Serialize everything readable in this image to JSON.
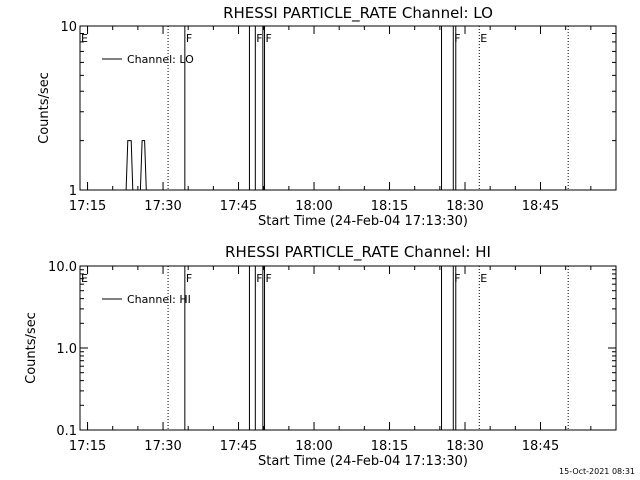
{
  "chart_data": [
    {
      "type": "line",
      "title": "RHESSI PARTICLE_RATE Channel: LO",
      "xlabel": "Start Time (24-Feb-04 17:13:30)",
      "ylabel": "Counts/sec",
      "yscale": "log",
      "ylim": [
        1,
        10
      ],
      "xlim": [
        "17:13:30",
        "19:00:00"
      ],
      "x_ticks": [
        "17:15",
        "17:30",
        "17:45",
        "18:00",
        "18:15",
        "18:30",
        "18:45"
      ],
      "y_ticks": [
        "1",
        "10"
      ],
      "legend": {
        "label": "Channel: LO",
        "placement": "top-left"
      },
      "series": [
        {
          "name": "Channel: LO",
          "points": [
            [
              "17:22:40",
              1
            ],
            [
              "17:23:00",
              2
            ],
            [
              "17:23:40",
              2
            ],
            [
              "17:24:00",
              1
            ],
            [
              "17:25:30",
              1
            ],
            [
              "17:25:50",
              2
            ],
            [
              "17:26:20",
              2
            ],
            [
              "17:26:40",
              1
            ]
          ]
        }
      ],
      "markers": [
        {
          "time": "17:13:30",
          "label": "E",
          "style": "dotted"
        },
        {
          "time": "17:31:00",
          "label": "",
          "style": "dotted"
        },
        {
          "time": "17:34:20",
          "label": "F",
          "style": "solid"
        },
        {
          "time": "17:47:10",
          "label": "",
          "style": "solid"
        },
        {
          "time": "17:48:20",
          "label": "F",
          "style": "solid"
        },
        {
          "time": "17:49:50",
          "label": "",
          "style": "solid"
        },
        {
          "time": "17:50:10",
          "label": "F",
          "style": "solid"
        },
        {
          "time": "18:25:20",
          "label": "",
          "style": "solid"
        },
        {
          "time": "18:27:40",
          "label": "F",
          "style": "solid"
        },
        {
          "time": "18:28:10",
          "label": "",
          "style": "solid"
        },
        {
          "time": "18:32:50",
          "label": "E",
          "style": "dotted"
        },
        {
          "time": "18:50:30",
          "label": "",
          "style": "dotted"
        }
      ]
    },
    {
      "type": "line",
      "title": "RHESSI PARTICLE_RATE Channel: HI",
      "xlabel": "Start Time (24-Feb-04 17:13:30)",
      "ylabel": "Counts/sec",
      "yscale": "log",
      "ylim": [
        0.1,
        10
      ],
      "xlim": [
        "17:13:30",
        "19:00:00"
      ],
      "x_ticks": [
        "17:15",
        "17:30",
        "17:45",
        "18:00",
        "18:15",
        "18:30",
        "18:45"
      ],
      "y_ticks": [
        "0.1",
        "1.0",
        "10.0"
      ],
      "legend": {
        "label": "Channel: HI",
        "placement": "top-left"
      },
      "series": [
        {
          "name": "Channel: HI",
          "points": []
        }
      ],
      "markers": [
        {
          "time": "17:13:30",
          "label": "E",
          "style": "dotted"
        },
        {
          "time": "17:31:00",
          "label": "",
          "style": "dotted"
        },
        {
          "time": "17:34:20",
          "label": "F",
          "style": "solid"
        },
        {
          "time": "17:47:10",
          "label": "",
          "style": "solid"
        },
        {
          "time": "17:48:20",
          "label": "F",
          "style": "solid"
        },
        {
          "time": "17:49:50",
          "label": "",
          "style": "solid"
        },
        {
          "time": "17:50:10",
          "label": "F",
          "style": "solid"
        },
        {
          "time": "18:25:20",
          "label": "",
          "style": "solid"
        },
        {
          "time": "18:27:40",
          "label": "F",
          "style": "solid"
        },
        {
          "time": "18:28:10",
          "label": "",
          "style": "solid"
        },
        {
          "time": "18:32:50",
          "label": "E",
          "style": "dotted"
        },
        {
          "time": "18:50:30",
          "label": "",
          "style": "dotted"
        }
      ]
    }
  ],
  "footer": {
    "timestamp": "15-Oct-2021 08:31"
  }
}
